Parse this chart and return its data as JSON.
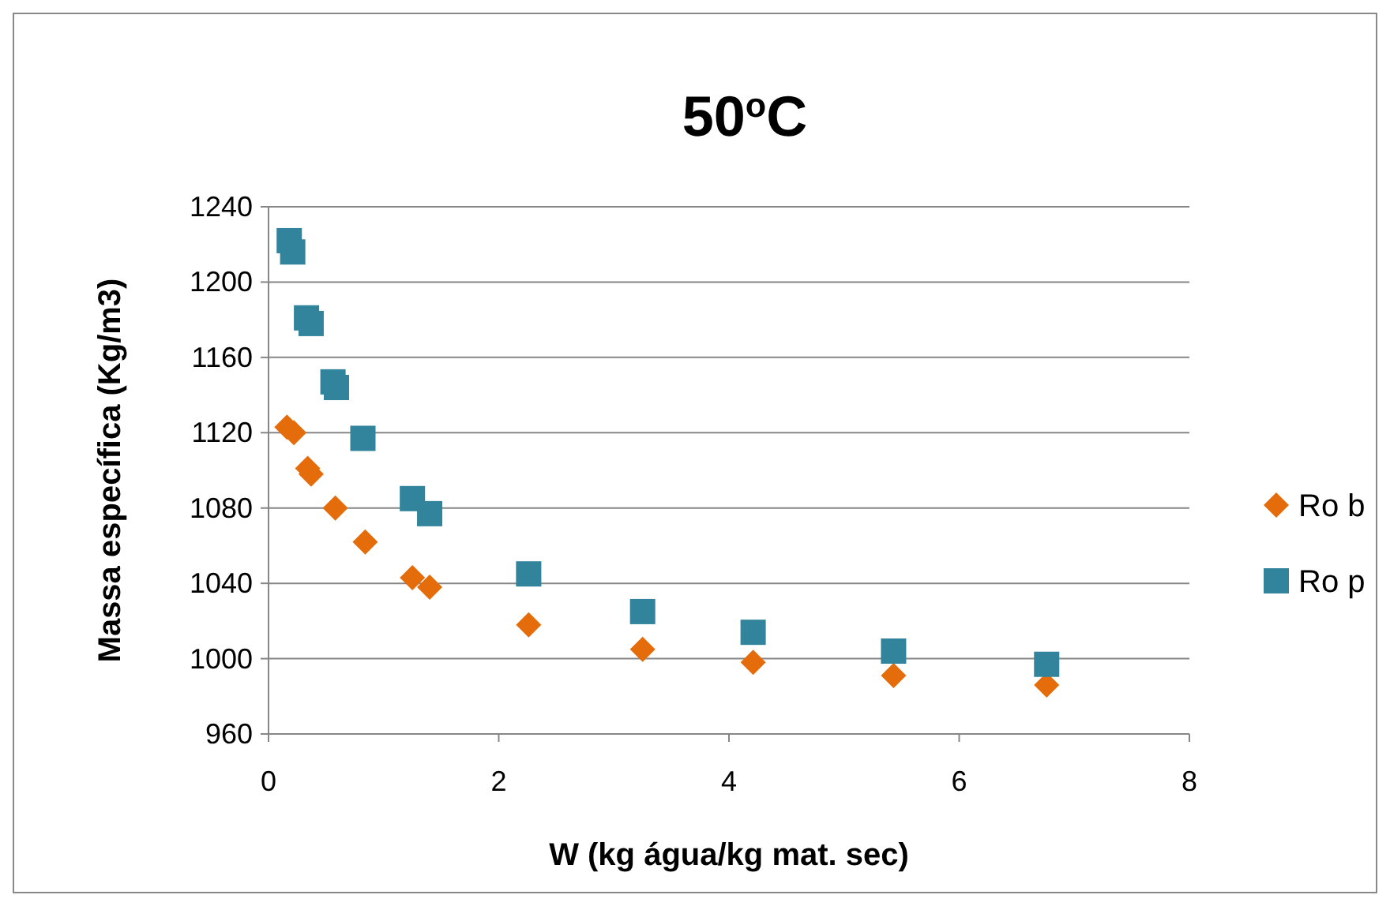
{
  "chart_data": {
    "type": "scatter",
    "title": "50$^{o}$C",
    "xlabel": "W (kg água/kg mat. sec)",
    "ylabel": "Massa específica (Kg/m3)",
    "xlim": [
      0,
      8
    ],
    "xticks": [
      0,
      2,
      4,
      6,
      8
    ],
    "ylim": [
      960,
      1240
    ],
    "yticks": [
      960,
      1000,
      1040,
      1080,
      1120,
      1160,
      1200,
      1240
    ],
    "grid": "y",
    "legend": "right",
    "series": [
      {
        "name": "Ro b",
        "color": "#e46c0a",
        "marker": "diamond",
        "x": [
          0.16,
          0.22,
          0.34,
          0.37,
          0.58,
          0.84,
          1.25,
          1.4,
          2.26,
          3.25,
          4.21,
          5.43,
          6.76
        ],
        "values": [
          1123,
          1120,
          1101,
          1098,
          1080,
          1062,
          1043,
          1038,
          1018,
          1005,
          998,
          991,
          986
        ]
      },
      {
        "name": "Ro p",
        "color": "#31849b",
        "marker": "square",
        "x": [
          0.18,
          0.21,
          0.33,
          0.37,
          0.56,
          0.59,
          0.82,
          1.25,
          1.4,
          2.26,
          3.25,
          4.21,
          5.43,
          6.76
        ],
        "values": [
          1222,
          1216,
          1181,
          1178,
          1147,
          1144,
          1117,
          1085,
          1077,
          1045,
          1025,
          1014,
          1004,
          997
        ]
      }
    ]
  }
}
